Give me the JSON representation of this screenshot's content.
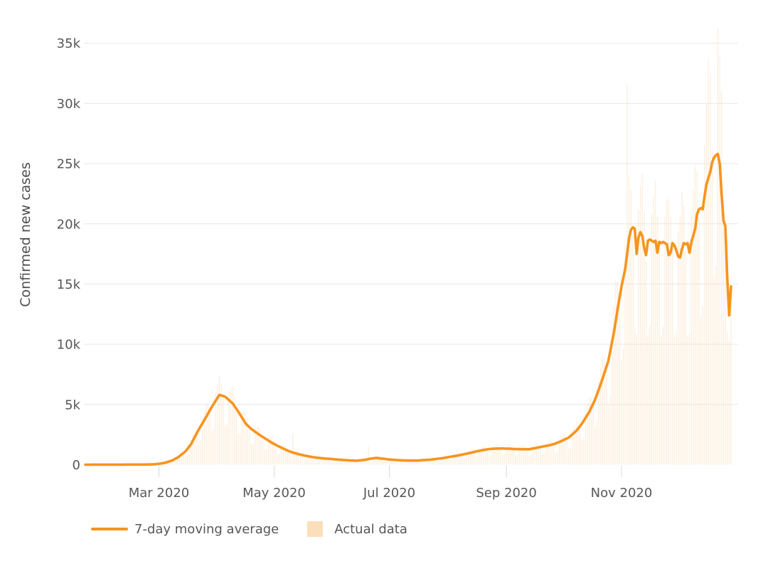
{
  "chart_data": {
    "type": "line+bar",
    "title": "",
    "xlabel": "",
    "ylabel": "Confirmed new cases",
    "x_unit": "days, first point = day 0, one point per day",
    "x_tick_labels": [
      "Mar 2020",
      "May 2020",
      "Jul 2020",
      "Sep 2020",
      "Nov 2020"
    ],
    "x_tick_days": [
      39,
      100,
      161,
      223,
      284
    ],
    "y_ticks": [
      0,
      5000,
      10000,
      15000,
      20000,
      25000,
      30000,
      35000
    ],
    "y_tick_labels": [
      "0",
      "5k",
      "10k",
      "15k",
      "20k",
      "25k",
      "30k",
      "35k"
    ],
    "ylim": [
      0,
      36500
    ],
    "grid": "horizontal",
    "legend": {
      "position": "bottom",
      "items": [
        {
          "label": "7-day moving average",
          "type": "line",
          "color": "#f7941e"
        },
        {
          "label": "Actual data",
          "type": "square",
          "color": "#fbdeba"
        }
      ]
    },
    "style": {
      "line_color": "#f7941e",
      "bar_color": "#fbdeba",
      "bar_opacity": 0.5,
      "grid_color": "#e7e7e7",
      "tick_mark_color": "#d9d9d9",
      "text_color": "#575757"
    },
    "series": [
      {
        "name": "7-day moving average",
        "type": "line",
        "color": "#f7941e",
        "values": [
          2,
          2,
          2,
          3,
          3,
          3,
          3,
          3,
          4,
          4,
          4,
          4,
          5,
          5,
          6,
          6,
          6,
          7,
          7,
          8,
          8,
          8,
          9,
          9,
          10,
          10,
          10,
          11,
          11,
          12,
          12,
          13,
          14,
          15,
          20,
          25,
          30,
          43,
          57,
          70,
          97,
          123,
          150,
          200,
          250,
          300,
          350,
          433,
          517,
          600,
          725,
          850,
          975,
          1100,
          1300,
          1500,
          1700,
          2000,
          2300,
          2600,
          2900,
          3170,
          3430,
          3700,
          3975,
          4250,
          4525,
          4800,
          5050,
          5300,
          5550,
          5800,
          5750,
          5700,
          5650,
          5512,
          5375,
          5238,
          5100,
          4867,
          4633,
          4400,
          4150,
          3900,
          3650,
          3400,
          3250,
          3100,
          2950,
          2838,
          2725,
          2613,
          2500,
          2400,
          2300,
          2200,
          2100,
          2000,
          1900,
          1800,
          1717,
          1633,
          1550,
          1475,
          1400,
          1325,
          1250,
          1183,
          1117,
          1050,
          1005,
          960,
          915,
          870,
          833,
          797,
          760,
          730,
          700,
          670,
          640,
          617,
          593,
          570,
          555,
          540,
          525,
          510,
          500,
          490,
          480,
          465,
          450,
          435,
          420,
          408,
          397,
          385,
          376,
          367,
          359,
          350,
          343,
          337,
          330,
          348,
          365,
          383,
          400,
          433,
          467,
          500,
          520,
          540,
          560,
          543,
          525,
          508,
          490,
          470,
          450,
          430,
          419,
          408,
          396,
          385,
          377,
          368,
          360,
          355,
          350,
          345,
          340,
          341,
          343,
          344,
          345,
          357,
          368,
          380,
          390,
          400,
          410,
          420,
          440,
          460,
          480,
          500,
          520,
          540,
          560,
          590,
          620,
          650,
          675,
          700,
          725,
          750,
          783,
          817,
          850,
          883,
          915,
          948,
          980,
          1020,
          1060,
          1100,
          1130,
          1160,
          1190,
          1220,
          1247,
          1273,
          1300,
          1310,
          1320,
          1330,
          1340,
          1343,
          1347,
          1350,
          1342,
          1335,
          1328,
          1320,
          1313,
          1307,
          1300,
          1295,
          1290,
          1285,
          1280,
          1280,
          1280,
          1280,
          1310,
          1340,
          1370,
          1400,
          1433,
          1467,
          1500,
          1530,
          1560,
          1590,
          1620,
          1663,
          1707,
          1750,
          1817,
          1883,
          1950,
          2025,
          2100,
          2175,
          2250,
          2388,
          2525,
          2663,
          2800,
          3000,
          3200,
          3400,
          3650,
          3900,
          4150,
          4400,
          4733,
          5067,
          5400,
          5833,
          6267,
          6700,
          7175,
          7650,
          8125,
          8600,
          9400,
          10200,
          11000,
          12000,
          13000,
          13900,
          14800,
          15550,
          16300,
          17550,
          18800,
          19500,
          19700,
          19600,
          17500,
          18900,
          19300,
          19000,
          18000,
          17400,
          18600,
          18700,
          18600,
          18500,
          18600,
          17600,
          18500,
          18400,
          18500,
          18400,
          18300,
          17400,
          17600,
          18400,
          18200,
          17800,
          17300,
          17200,
          17900,
          18400,
          18300,
          18400,
          17600,
          18500,
          19000,
          19600,
          20800,
          21200,
          21300,
          21200,
          22300,
          23300,
          23800,
          24300,
          25100,
          25500,
          25700,
          25800,
          25000,
          22500,
          20300,
          19800,
          15500,
          12400,
          14800
        ]
      },
      {
        "name": "Actual data",
        "type": "bar",
        "color": "#fbdeba",
        "values": [
          2,
          3,
          2,
          3,
          2,
          2,
          3,
          4,
          5,
          5,
          4,
          2,
          3,
          6,
          7,
          8,
          7,
          7,
          4,
          5,
          9,
          10,
          11,
          11,
          10,
          6,
          6,
          12,
          13,
          15,
          14,
          13,
          8,
          9,
          22,
          30,
          38,
          50,
          55,
          41,
          60,
          138,
          180,
          254,
          293,
          291,
          203,
          268,
          579,
          720,
          921,
          995,
          946,
          638,
          806,
          1680,
          2040,
          2540,
          2691,
          2522,
          1682,
          1965,
          3842,
          4440,
          5048,
          4973,
          4389,
          2784,
          3131,
          5936,
          6660,
          7366,
          6728,
          5529,
          3277,
          3417,
          6020,
          6286,
          6477,
          5694,
          4494,
          2552,
          2573,
          4368,
          4380,
          4318,
          3803,
          3007,
          1711,
          1760,
          3052,
          3136,
          3175,
          2808,
          2231,
          1276,
          1302,
          2240,
          2280,
          2286,
          2009,
          1584,
          899,
          915,
          1568,
          1590,
          1588,
          1384,
          1083,
          609,
          2600,
          1075,
          1098,
          1105,
          975,
          773,
          441,
          453,
          784,
          804,
          813,
          722,
          575,
          331,
          344,
          605,
          630,
          648,
          585,
          475,
          278,
          288,
          504,
          522,
          533,
          477,
          385,
          223,
          233,
          411,
          431,
          445,
          401,
          327,
          191,
          216,
          409,
          460,
          508,
          507,
          1500,
          290,
          322,
          605,
          672,
          690,
          614,
          493,
          284,
          291,
          504,
          516,
          532,
          477,
          384,
          223,
          234,
          412,
          432,
          451,
          410,
          335,
          197,
          211,
          384,
          413,
          438,
          418,
          357,
          220,
          242,
          448,
          492,
          533,
          515,
          446,
          278,
          310,
          582,
          648,
          711,
          690,
          601,
          377,
          419,
          784,
          870,
          953,
          916,
          792,
          493,
          547,
          1025,
          1138,
          1245,
          1193,
          1028,
          638,
          701,
          1299,
          1428,
          1549,
          1459,
          1235,
          754,
          812,
          1478,
          1596,
          1702,
          1571,
          1307,
          783,
          832,
          1495,
          1594,
          1676,
          1536,
          1268,
          754,
          803,
          1445,
          1542,
          1626,
          1498,
          1242,
          742,
          812,
          1501,
          1644,
          1778,
          1677,
          1423,
          870,
          949,
          1747,
          1908,
          2057,
          1946,
          1656,
          1015,
          1127,
          2109,
          2340,
          2572,
          2457,
          2110,
          1305,
          1481,
          2828,
          3196,
          3556,
          3510,
          3104,
          1972,
          2263,
          4368,
          4980,
          5588,
          5538,
          4915,
          3132,
          3617,
          7019,
          8040,
          9112,
          8951,
          7881,
          4988,
          5828,
          11424,
          13200,
          15240,
          15210,
          13483,
          8584,
          9641,
          18256,
          31500,
          23876,
          22815,
          19109,
          11368,
          10850,
          21168,
          23160,
          24130,
          21060,
          16878,
          10788,
          11594,
          20832,
          22200,
          23622,
          20592,
          17945,
          10672,
          11470,
          20608,
          21960,
          22098,
          20592,
          17848,
          10556,
          11036,
          19376,
          20640,
          22733,
          21528,
          17751,
          10672,
          10912,
          20720,
          22800,
          24892,
          24336,
          20564,
          12354,
          13144,
          26500,
          29900,
          33700,
          32500,
          26000,
          15500,
          16500,
          36200,
          33900,
          31000,
          22000,
          20000,
          11000,
          10300,
          13500
        ]
      }
    ]
  }
}
